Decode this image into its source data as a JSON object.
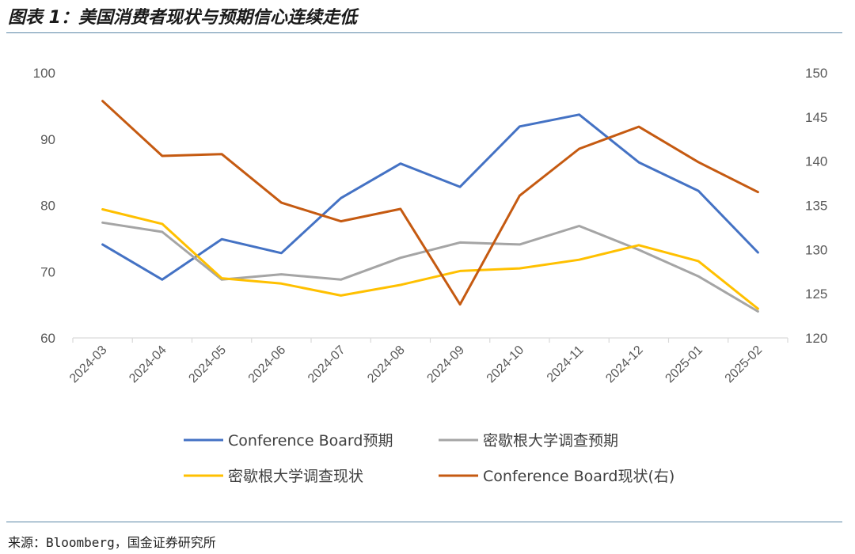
{
  "header": {
    "title": "图表 1：美国消费者现状与预期信心连续走低"
  },
  "footer": {
    "source": "来源：Bloomberg，国金证券研究所"
  },
  "chart_data": {
    "type": "line",
    "x": [
      "2024-03",
      "2024-04",
      "2024-05",
      "2024-06",
      "2024-07",
      "2024-08",
      "2024-09",
      "2024-10",
      "2024-11",
      "2024-12",
      "2025-01",
      "2025-02"
    ],
    "y_left": {
      "ylim": [
        60,
        100
      ],
      "ticks": [
        60,
        70,
        80,
        90,
        100
      ]
    },
    "y_right": {
      "ylim": [
        120,
        150
      ],
      "ticks": [
        120,
        125,
        130,
        135,
        140,
        145,
        150
      ]
    },
    "grid": false,
    "legend_position": "bottom",
    "series": [
      {
        "name": "Conference Board预期",
        "axis": "left",
        "color": "#4472c4",
        "values": [
          74.1,
          68.8,
          74.9,
          72.8,
          81.1,
          86.3,
          82.8,
          91.9,
          93.7,
          86.5,
          82.2,
          72.9
        ]
      },
      {
        "name": "密歇根大学调查预期",
        "axis": "left",
        "color": "#a5a5a5",
        "values": [
          77.4,
          76.0,
          68.8,
          69.6,
          68.8,
          72.1,
          74.4,
          74.1,
          76.9,
          73.3,
          69.3,
          64.0
        ]
      },
      {
        "name": "密歇根大学调查现状",
        "axis": "left",
        "color": "#ffc000",
        "values": [
          79.4,
          77.2,
          69.0,
          68.2,
          66.4,
          68.0,
          70.1,
          70.5,
          71.8,
          74.0,
          71.6,
          64.4
        ]
      },
      {
        "name": "Conference Board现状(右)",
        "axis": "right",
        "color": "#c55a11",
        "values": [
          146.8,
          140.6,
          140.8,
          135.3,
          133.2,
          134.6,
          123.8,
          136.1,
          141.4,
          143.9,
          139.9,
          136.5
        ]
      }
    ]
  }
}
